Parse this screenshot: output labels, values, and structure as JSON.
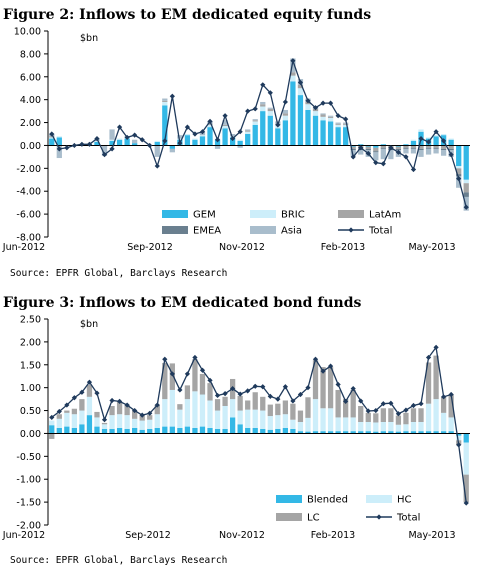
{
  "colors": {
    "gem": "#33b8e6",
    "bric": "#cdeefa",
    "latam": "#a5a5a5",
    "emea": "#6a7f8f",
    "asia": "#a9bdcc",
    "total": "#1f3a5c",
    "blended": "#33b8e6",
    "hc": "#cdeefa",
    "lc": "#a5a5a5"
  },
  "chart_data": [
    {
      "type": "bar",
      "stacked": true,
      "title": "Figure 2: Inflows to EM dedicated equity funds",
      "unit_label": "$bn",
      "ylim": [
        -8,
        10
      ],
      "yticks": [
        "10.00",
        "8.00",
        "6.00",
        "4.00",
        "2.00",
        "0.00",
        "-2.00",
        "-4.00",
        "-6.00",
        "-8.00"
      ],
      "xticks": [
        "Jun-2012",
        "Sep-2012",
        "Nov-2012",
        "Feb-2013",
        "May-2013"
      ],
      "grid": false,
      "legend_position": "bottom-right",
      "series": [
        {
          "name": "GEM",
          "values": [
            0.6,
            0.7,
            0,
            0,
            0,
            0.1,
            0.3,
            0,
            0.4,
            0.5,
            0.6,
            0.2,
            0,
            0,
            0.3,
            3.5,
            -0.3,
            0.5,
            0.9,
            0.5,
            0.8,
            1.6,
            0.5,
            1.5,
            0.7,
            0.4,
            1.0,
            1.8,
            3.0,
            2.6,
            1.5,
            2.2,
            5.6,
            4.4,
            3.1,
            2.6,
            2.2,
            2.1,
            1.6,
            1.6,
            -0.1,
            0.1,
            -0.1,
            -0.2,
            0.1,
            0,
            -0.1,
            0.1,
            0.4,
            1.2,
            0.6,
            0.8,
            0.9,
            0.5,
            -1.8,
            -3.0
          ]
        },
        {
          "name": "BRIC",
          "values": [
            0.1,
            0.1,
            0,
            0,
            0,
            0,
            0.1,
            0,
            0.1,
            0.1,
            0.1,
            0,
            0,
            0,
            0.1,
            0.3,
            0,
            0.1,
            0.1,
            0.1,
            0.1,
            0.2,
            0.1,
            0.2,
            0.1,
            0.1,
            0.2,
            0.3,
            0.4,
            0.4,
            0.3,
            0.4,
            0.5,
            0.6,
            0.5,
            0.4,
            0.3,
            0.3,
            0.2,
            0.2,
            0,
            0,
            0,
            0,
            0,
            0,
            0,
            0,
            0.1,
            0.2,
            0.1,
            0.1,
            0.1,
            0.1,
            -0.2,
            -0.3
          ]
        },
        {
          "name": "LatAm",
          "values": [
            0.1,
            0,
            0,
            0,
            0,
            0,
            0,
            0,
            0,
            0,
            0,
            0,
            0,
            0,
            0,
            0.1,
            0,
            0,
            0,
            0,
            0,
            0.1,
            0,
            0.1,
            0,
            0,
            0.1,
            0.1,
            0.2,
            0.2,
            0.1,
            0.2,
            0.3,
            0.3,
            0.2,
            0.2,
            0.2,
            0.1,
            0.1,
            0.1,
            -0.2,
            -0.3,
            -0.2,
            -0.3,
            -0.2,
            -0.3,
            -0.2,
            -0.2,
            -0.2,
            -0.3,
            -0.2,
            -0.2,
            -0.3,
            -0.3,
            -0.5,
            -0.8
          ]
        },
        {
          "name": "EMEA",
          "values": [
            0,
            0,
            0,
            0,
            0,
            0,
            0,
            0,
            0,
            0,
            0,
            0,
            0,
            0,
            0,
            0,
            0,
            0,
            0,
            0,
            0,
            0,
            0,
            0,
            0,
            0,
            0,
            0,
            0,
            0,
            0,
            0,
            0,
            0,
            0,
            0,
            0,
            0,
            0,
            0,
            -0.1,
            -0.1,
            -0.1,
            -0.1,
            -0.1,
            -0.1,
            -0.1,
            -0.1,
            -0.1,
            -0.1,
            -0.1,
            -0.1,
            -0.1,
            -0.1,
            -0.2,
            -0.4
          ]
        },
        {
          "name": "Asia",
          "values": [
            0.2,
            -1.1,
            0,
            0,
            0,
            0,
            0.2,
            -0.9,
            0.9,
            0,
            0.1,
            0.3,
            0,
            0,
            -1.0,
            0.2,
            -0.3,
            0.3,
            0,
            0,
            0.3,
            0.2,
            -0.3,
            0.4,
            0.2,
            -0.2,
            0.1,
            0.1,
            0.2,
            0.1,
            0.2,
            0.3,
            1.2,
            0.5,
            0.3,
            0.2,
            0.1,
            0.1,
            0.1,
            0.1,
            -0.5,
            -0.4,
            -0.6,
            -0.7,
            -0.9,
            -0.8,
            -0.6,
            -0.4,
            -0.4,
            -0.6,
            -0.5,
            -0.4,
            -0.5,
            -0.6,
            -1.0,
            -1.2
          ]
        },
        {
          "name": "Total",
          "line": true,
          "values": [
            1.0,
            -0.3,
            -0.2,
            0,
            0.1,
            0.1,
            0.6,
            -0.8,
            -0.3,
            1.6,
            0.7,
            0.9,
            0.5,
            0,
            -1.8,
            0.4,
            4.3,
            0.2,
            1.6,
            1.0,
            1.2,
            2.1,
            0.5,
            2.6,
            0.6,
            1.2,
            3.0,
            3.2,
            5.3,
            4.6,
            1.8,
            3.8,
            7.4,
            5.5,
            3.9,
            3.3,
            3.7,
            3.7,
            2.6,
            2.3,
            -1.0,
            -0.2,
            -0.7,
            -1.5,
            -1.6,
            -0.2,
            -0.6,
            -1.0,
            -2.1,
            0.6,
            0.3,
            1.2,
            0.4,
            -0.8,
            -2.9,
            -5.4
          ]
        }
      ]
    },
    {
      "type": "bar",
      "stacked": true,
      "title": "Figure 3: Inflows to EM dedicated bond funds",
      "unit_label": "$bn",
      "ylim": [
        -2,
        2.5
      ],
      "yticks": [
        "2.50",
        "2.00",
        "1.50",
        "1.00",
        "0.50",
        "0.00",
        "-0.50",
        "-1.00",
        "-1.50",
        "-2.00"
      ],
      "xticks": [
        "Jun-2012",
        "Sep-2012",
        "Nov-2012",
        "Feb-2013",
        "May-2013"
      ],
      "grid": false,
      "legend_position": "bottom-right",
      "series": [
        {
          "name": "Blended",
          "values": [
            0.18,
            0.12,
            0.15,
            0.12,
            0.2,
            0.4,
            0.15,
            0.1,
            0.1,
            0.12,
            0.1,
            0.12,
            0.08,
            0.1,
            0.12,
            0.15,
            0.15,
            0.12,
            0.15,
            0.12,
            0.15,
            0.12,
            0.1,
            0.1,
            0.35,
            0.2,
            0.12,
            0.12,
            0.1,
            0.08,
            0.1,
            0.12,
            0.1,
            0.05,
            0.04,
            0.05,
            0.05,
            0.05,
            0.05,
            0.05,
            0.05,
            0.05,
            0.05,
            0.04,
            0.05,
            0.05,
            0.04,
            0.05,
            0.05,
            0.05,
            0.05,
            0.05,
            0.05,
            0.05,
            -0.05,
            -0.2
          ]
        },
        {
          "name": "HC",
          "values": [
            0.1,
            0.2,
            0.3,
            0.3,
            0.3,
            0.4,
            0.2,
            0.1,
            0.3,
            0.3,
            0.3,
            0.2,
            0.2,
            0.2,
            0.3,
            0.6,
            0.8,
            0.4,
            0.6,
            0.8,
            0.7,
            0.6,
            0.4,
            0.5,
            0.4,
            0.3,
            0.4,
            0.4,
            0.4,
            0.3,
            0.3,
            0.3,
            0.2,
            0.2,
            0.3,
            0.7,
            0.5,
            0.5,
            0.3,
            0.3,
            0.3,
            0.2,
            0.2,
            0.2,
            0.2,
            0.2,
            0.15,
            0.15,
            0.2,
            0.2,
            0.6,
            0.7,
            0.4,
            0.3,
            -0.1,
            -0.7
          ]
        },
        {
          "name": "LC",
          "values": [
            -0.12,
            0.1,
            0.05,
            0.12,
            0.25,
            0.26,
            0.12,
            0.03,
            0.2,
            0.28,
            0.22,
            0.18,
            0.12,
            0.1,
            0.2,
            0.79,
            0.58,
            0.12,
            0.3,
            0.7,
            0.45,
            0.38,
            0.25,
            0.2,
            0.44,
            0.32,
            0.2,
            0.38,
            0.3,
            0.25,
            0.25,
            0.3,
            0.35,
            0.25,
            0.45,
            0.85,
            0.9,
            0.9,
            0.6,
            0.4,
            0.6,
            0.35,
            0.2,
            0.2,
            0.3,
            0.3,
            0.2,
            0.25,
            0.3,
            0.3,
            0.9,
            0.95,
            0.35,
            0.5,
            -0.1,
            -0.6
          ]
        },
        {
          "name": "Total",
          "line": true,
          "values": [
            0.35,
            0.48,
            0.62,
            0.78,
            0.9,
            1.12,
            0.88,
            0.3,
            0.72,
            0.7,
            0.62,
            0.5,
            0.4,
            0.44,
            0.62,
            1.62,
            1.3,
            0.95,
            1.3,
            1.66,
            1.38,
            1.16,
            0.83,
            0.87,
            0.98,
            0.86,
            0.93,
            1.03,
            1.02,
            0.81,
            0.75,
            1.02,
            0.71,
            0.85,
            1.0,
            1.62,
            1.36,
            1.47,
            1.07,
            0.7,
            0.98,
            0.71,
            0.49,
            0.5,
            0.65,
            0.66,
            0.43,
            0.51,
            0.61,
            0.65,
            1.66,
            1.88,
            0.8,
            0.85,
            -0.25,
            -1.52
          ]
        }
      ]
    }
  ],
  "sources": [
    "Source: EPFR Global, Barclays Research",
    "Source: EPFR Global, Barclays Research"
  ]
}
